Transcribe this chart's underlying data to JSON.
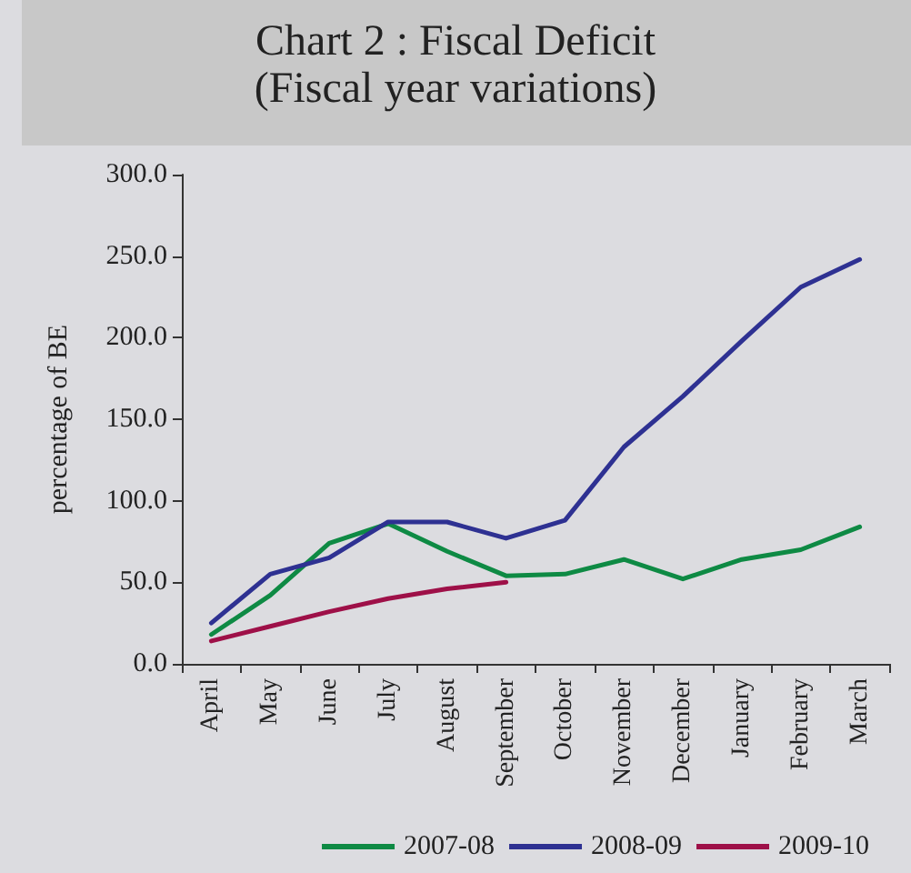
{
  "chart_data": {
    "type": "line",
    "title": "Chart 2 : Fiscal Deficit",
    "subtitle": "(Fiscal year variations)",
    "ylabel": "percentage of BE",
    "categories": [
      "April",
      "May",
      "June",
      "July",
      "August",
      "September",
      "October",
      "November",
      "December",
      "January",
      "February",
      "March"
    ],
    "series": [
      {
        "name": "2007-08",
        "color": "#0e8a44",
        "values": [
          18,
          42,
          74,
          86,
          69,
          54,
          55,
          64,
          52,
          64,
          70,
          84
        ]
      },
      {
        "name": "2008-09",
        "color": "#2e3192",
        "values": [
          25,
          55,
          65,
          87,
          87,
          77,
          88,
          133,
          164,
          198,
          231,
          248
        ]
      },
      {
        "name": "2009-10",
        "color": "#9e1048",
        "values": [
          14,
          23,
          32,
          40,
          46,
          50,
          null,
          null,
          null,
          null,
          null,
          null
        ]
      }
    ],
    "ylim": [
      0,
      300
    ],
    "yticks": [
      {
        "value": 0,
        "label": "0.0"
      },
      {
        "value": 50,
        "label": "50.0"
      },
      {
        "value": 100,
        "label": "100.0"
      },
      {
        "value": 150,
        "label": "150.0"
      },
      {
        "value": 200,
        "label": "200.0"
      },
      {
        "value": 250,
        "label": "250.0"
      },
      {
        "value": 300,
        "label": "300.0"
      }
    ],
    "legend": "bottom",
    "marker": "none",
    "line_style": "solid"
  }
}
